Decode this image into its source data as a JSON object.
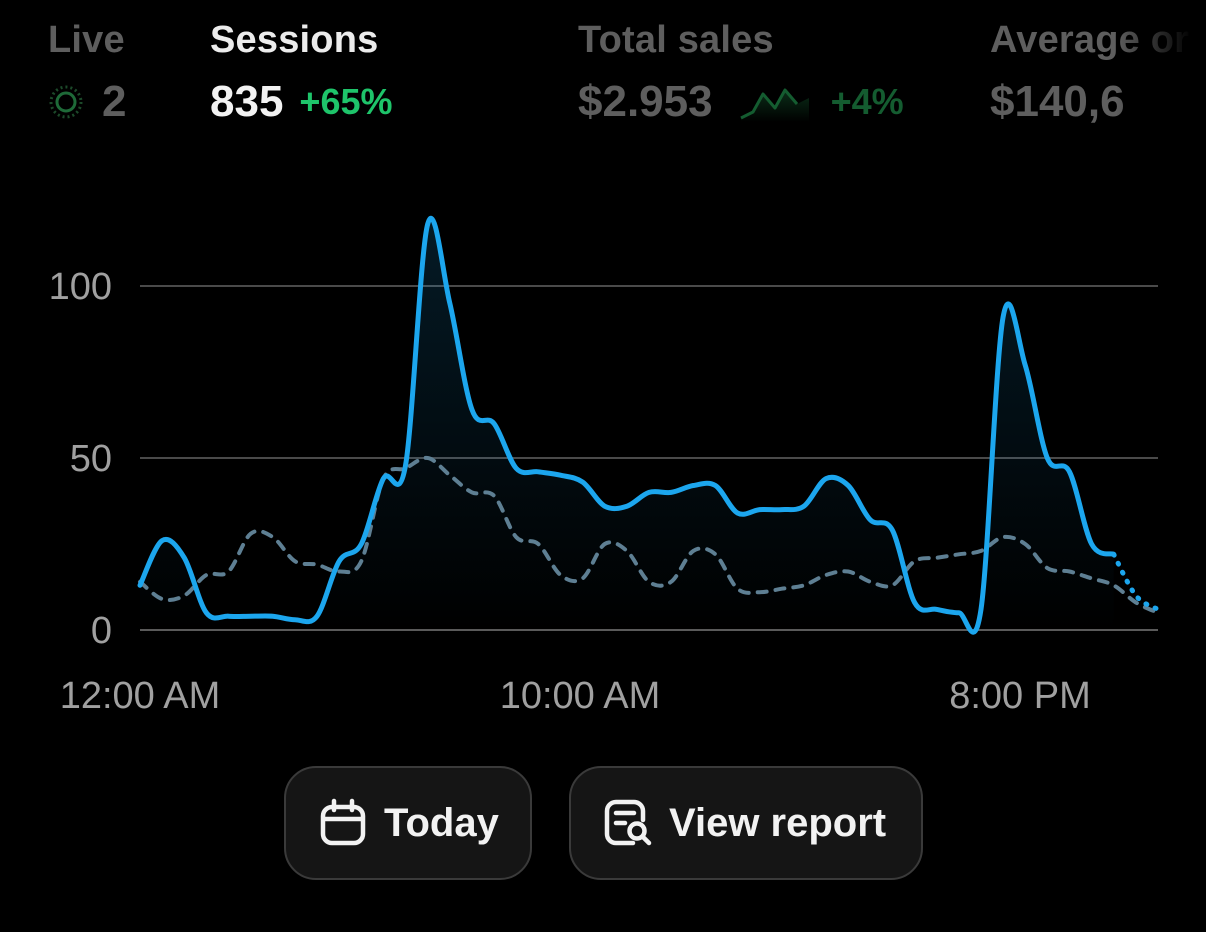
{
  "metrics": {
    "live": {
      "label": "Live",
      "value": "2"
    },
    "sessions": {
      "label": "Sessions",
      "value": "835",
      "delta": "+65%"
    },
    "total_sales": {
      "label": "Total sales",
      "value": "$2.953",
      "delta": "+4%"
    },
    "average_order": {
      "label": "Average or",
      "value": "$140,6"
    }
  },
  "colors": {
    "accent": "#1ca6ee",
    "comparison": "#5e7f93",
    "positive": "#1ec46a",
    "muted_text": "#5e5e5e",
    "gridline": "#4a4a4a"
  },
  "chart_data": {
    "type": "line",
    "x_ticks": [
      "12:00 AM",
      "10:00 AM",
      "8:00 PM"
    ],
    "y_ticks": [
      0,
      50,
      100
    ],
    "ylim": [
      0,
      120
    ],
    "x": [
      0,
      0.5,
      1,
      1.5,
      2,
      2.5,
      3,
      3.5,
      4,
      4.5,
      5,
      5.5,
      6,
      6.5,
      7,
      7.5,
      8,
      8.5,
      9,
      9.5,
      10,
      10.5,
      11,
      11.5,
      12,
      12.5,
      13,
      13.5,
      14,
      14.5,
      15,
      15.5,
      16,
      16.5,
      17,
      17.5,
      18,
      18.5,
      19,
      19.5,
      20,
      20.5,
      21,
      21.5,
      22,
      22.5,
      23
    ],
    "series": [
      {
        "values": [
          13,
          26,
          21,
          5,
          4,
          4,
          4,
          3,
          4,
          20,
          25,
          44,
          48,
          118,
          95,
          64,
          60,
          47,
          46,
          45,
          43,
          36,
          36,
          40,
          40,
          42,
          42,
          34,
          35,
          35,
          36,
          44,
          42,
          32,
          29,
          8,
          6,
          5,
          6,
          91,
          77,
          50,
          46,
          25,
          22,
          10,
          6
        ],
        "style": "solid",
        "projected_from_index": 44
      },
      {
        "values": [
          14,
          9,
          10,
          16,
          17,
          28,
          27,
          20,
          19,
          17,
          20,
          44,
          47,
          50,
          45,
          40,
          39,
          27,
          25,
          16,
          15,
          25,
          23,
          14,
          14,
          23,
          22,
          12,
          11,
          12,
          13,
          16,
          17,
          14,
          13,
          20,
          21,
          22,
          23,
          27,
          25,
          18,
          17,
          15,
          13,
          8,
          5
        ],
        "style": "dotted"
      }
    ]
  },
  "buttons": {
    "today": "Today",
    "view_report": "View report"
  }
}
